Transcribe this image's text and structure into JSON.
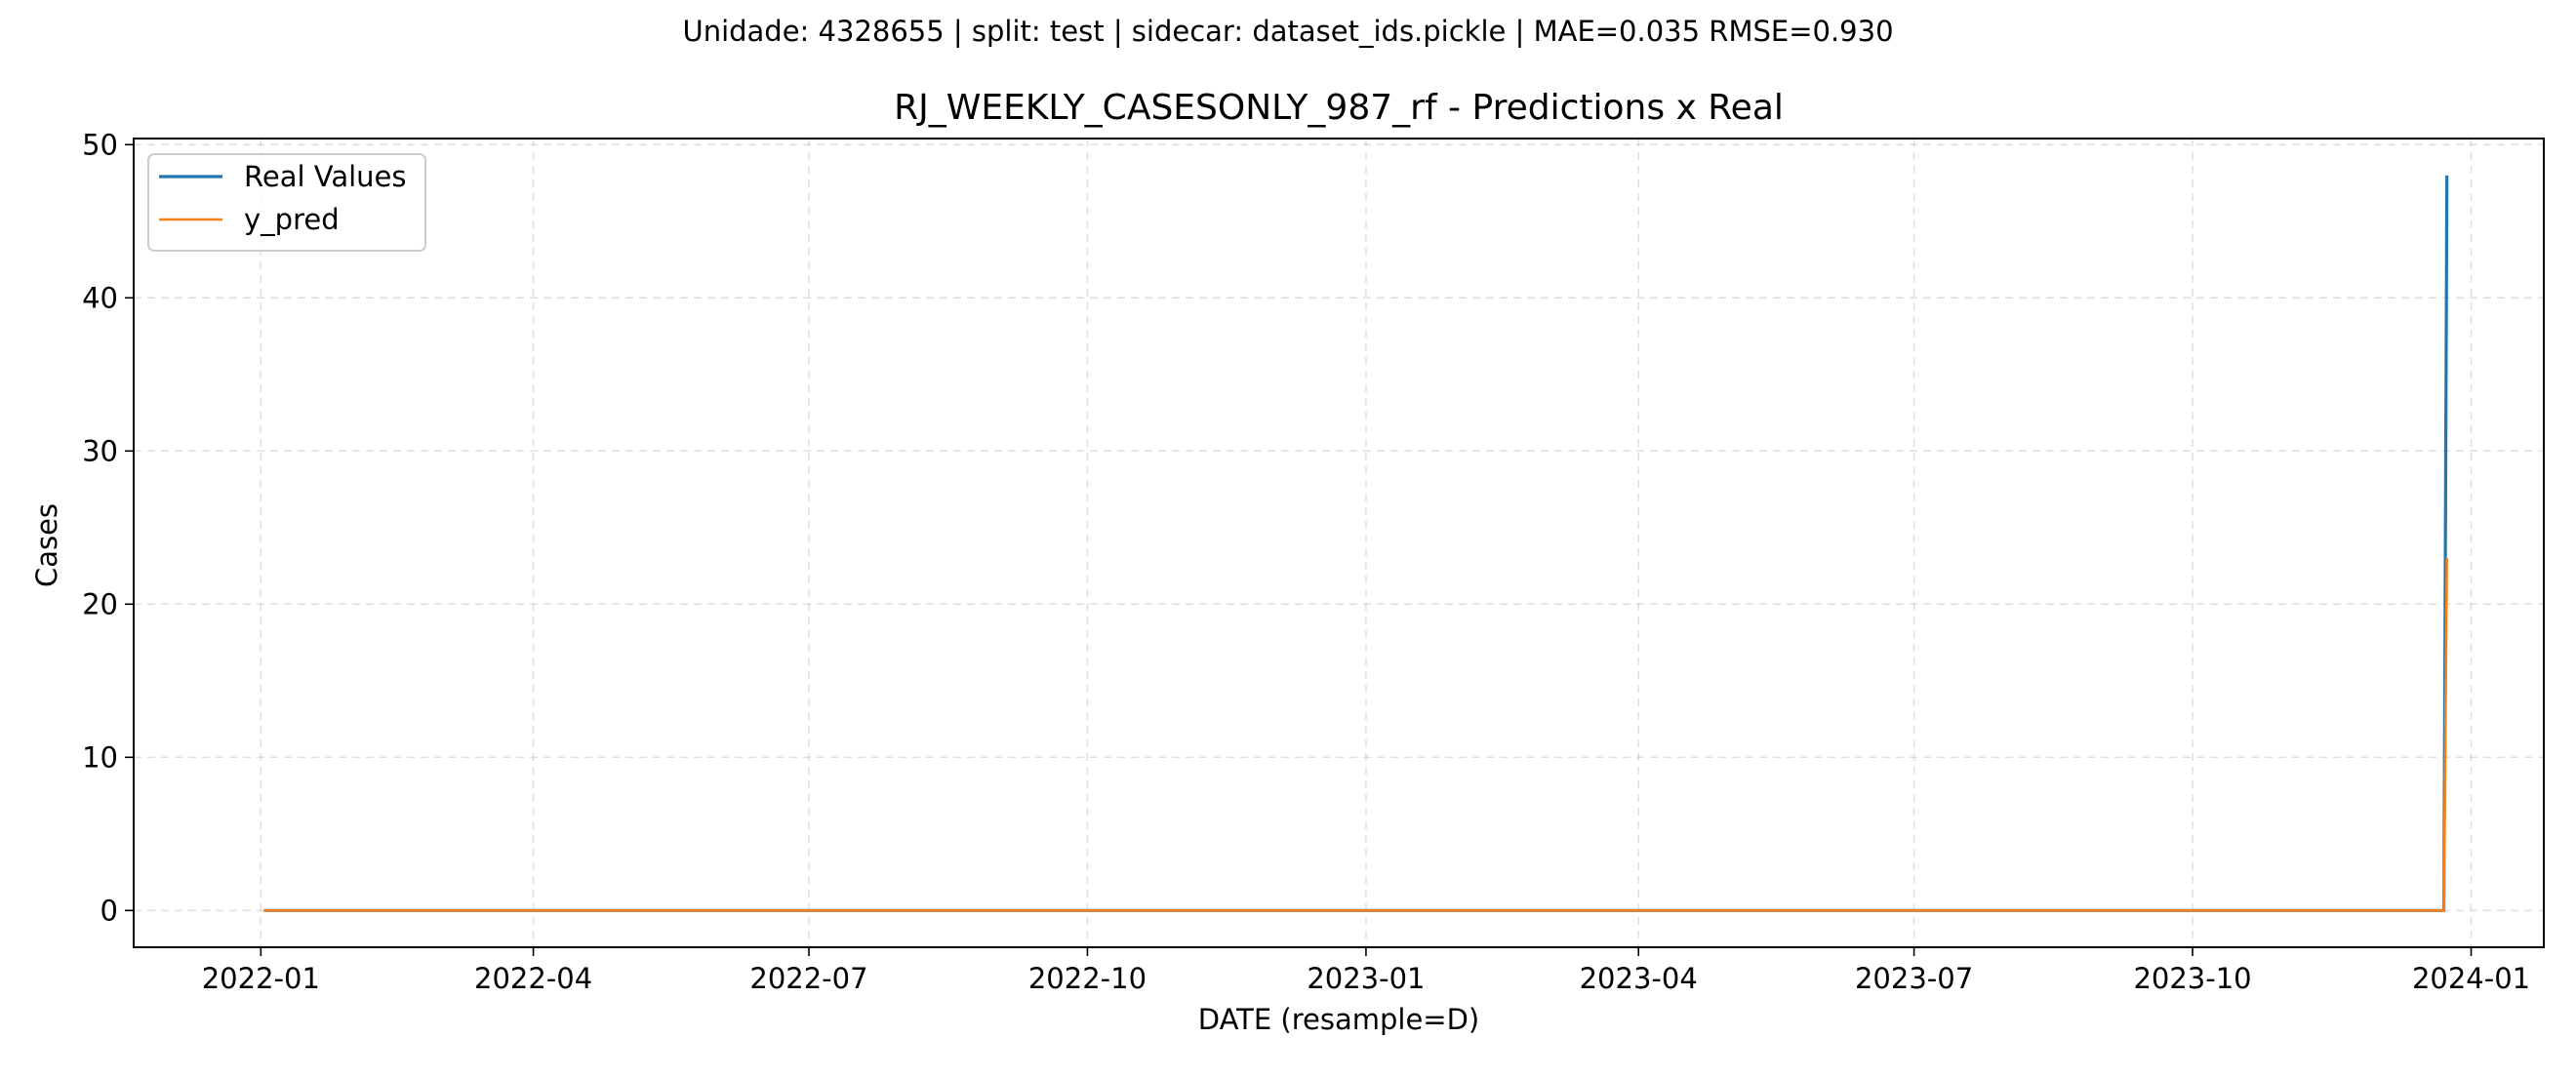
{
  "figure": {
    "suptitle": "Unidade: 4328655 | split: test | sidecar: dataset_ids.pickle | MAE=0.035  RMSE=0.930"
  },
  "chart_data": {
    "type": "line",
    "title": "RJ_WEEKLY_CASESONLY_987_rf - Predictions x Real",
    "xlabel": "DATE (resample=D)",
    "ylabel": "Cases",
    "xlim": [
      "2021-11-20",
      "2024-01-25"
    ],
    "ylim": [
      -2.4,
      50.4
    ],
    "x_ticks": [
      "2022-01",
      "2022-04",
      "2022-07",
      "2022-10",
      "2023-01",
      "2023-04",
      "2023-07",
      "2023-10",
      "2024-01"
    ],
    "y_ticks": [
      0,
      10,
      20,
      30,
      40,
      50
    ],
    "grid": true,
    "grid_style": "dashed",
    "legend_position": "top-left",
    "series": [
      {
        "name": "Real Values",
        "color": "#1f77b4",
        "x": [
          "2022-01-02",
          "2023-12-23",
          "2023-12-24"
        ],
        "values": [
          0,
          0,
          48
        ]
      },
      {
        "name": "y_pred",
        "color": "#ff7f0e",
        "x": [
          "2022-01-02",
          "2023-12-23",
          "2023-12-24"
        ],
        "values": [
          0,
          0,
          23
        ]
      }
    ]
  }
}
